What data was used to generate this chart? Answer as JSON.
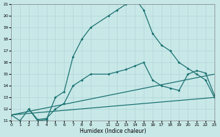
{
  "xlabel": "Humidex (Indice chaleur)",
  "background_color": "#c8e8e8",
  "grid_color": "#b0d4d4",
  "line_color": "#1a7070",
  "curve1_x": [
    0,
    1,
    2,
    3,
    4,
    5,
    6,
    7,
    8,
    9,
    11,
    12,
    13,
    14,
    15,
    16,
    17,
    18,
    19,
    20,
    21,
    22,
    23
  ],
  "curve1_y": [
    11.5,
    11.0,
    12.0,
    11.0,
    11.1,
    13.0,
    13.5,
    16.5,
    18.0,
    19.0,
    20.0,
    20.5,
    21.0,
    21.5,
    20.5,
    18.5,
    17.5,
    17.0,
    16.0,
    15.5,
    15.0,
    14.5,
    13.0
  ],
  "curve2_x": [
    2,
    3,
    4,
    5,
    6,
    7,
    8,
    9,
    11,
    12,
    13,
    14,
    15,
    16,
    17,
    18,
    19,
    20,
    21,
    22,
    23
  ],
  "curve2_y": [
    12.0,
    11.1,
    11.2,
    12.0,
    12.5,
    14.0,
    14.5,
    15.0,
    15.0,
    15.2,
    15.4,
    15.7,
    16.0,
    14.5,
    14.0,
    13.8,
    13.6,
    15.0,
    15.3,
    15.1,
    13.2
  ],
  "line3_x": [
    0,
    23
  ],
  "line3_y": [
    11.5,
    15.0
  ],
  "line4_x": [
    0,
    23
  ],
  "line4_y": [
    11.5,
    13.0
  ],
  "xlim": [
    0,
    23
  ],
  "ylim": [
    11,
    21
  ],
  "yticks": [
    11,
    12,
    13,
    14,
    15,
    16,
    17,
    18,
    19,
    20,
    21
  ],
  "xticks": [
    0,
    1,
    2,
    3,
    4,
    5,
    6,
    7,
    8,
    9,
    11,
    12,
    13,
    14,
    15,
    16,
    17,
    18,
    19,
    20,
    21,
    22,
    23
  ]
}
